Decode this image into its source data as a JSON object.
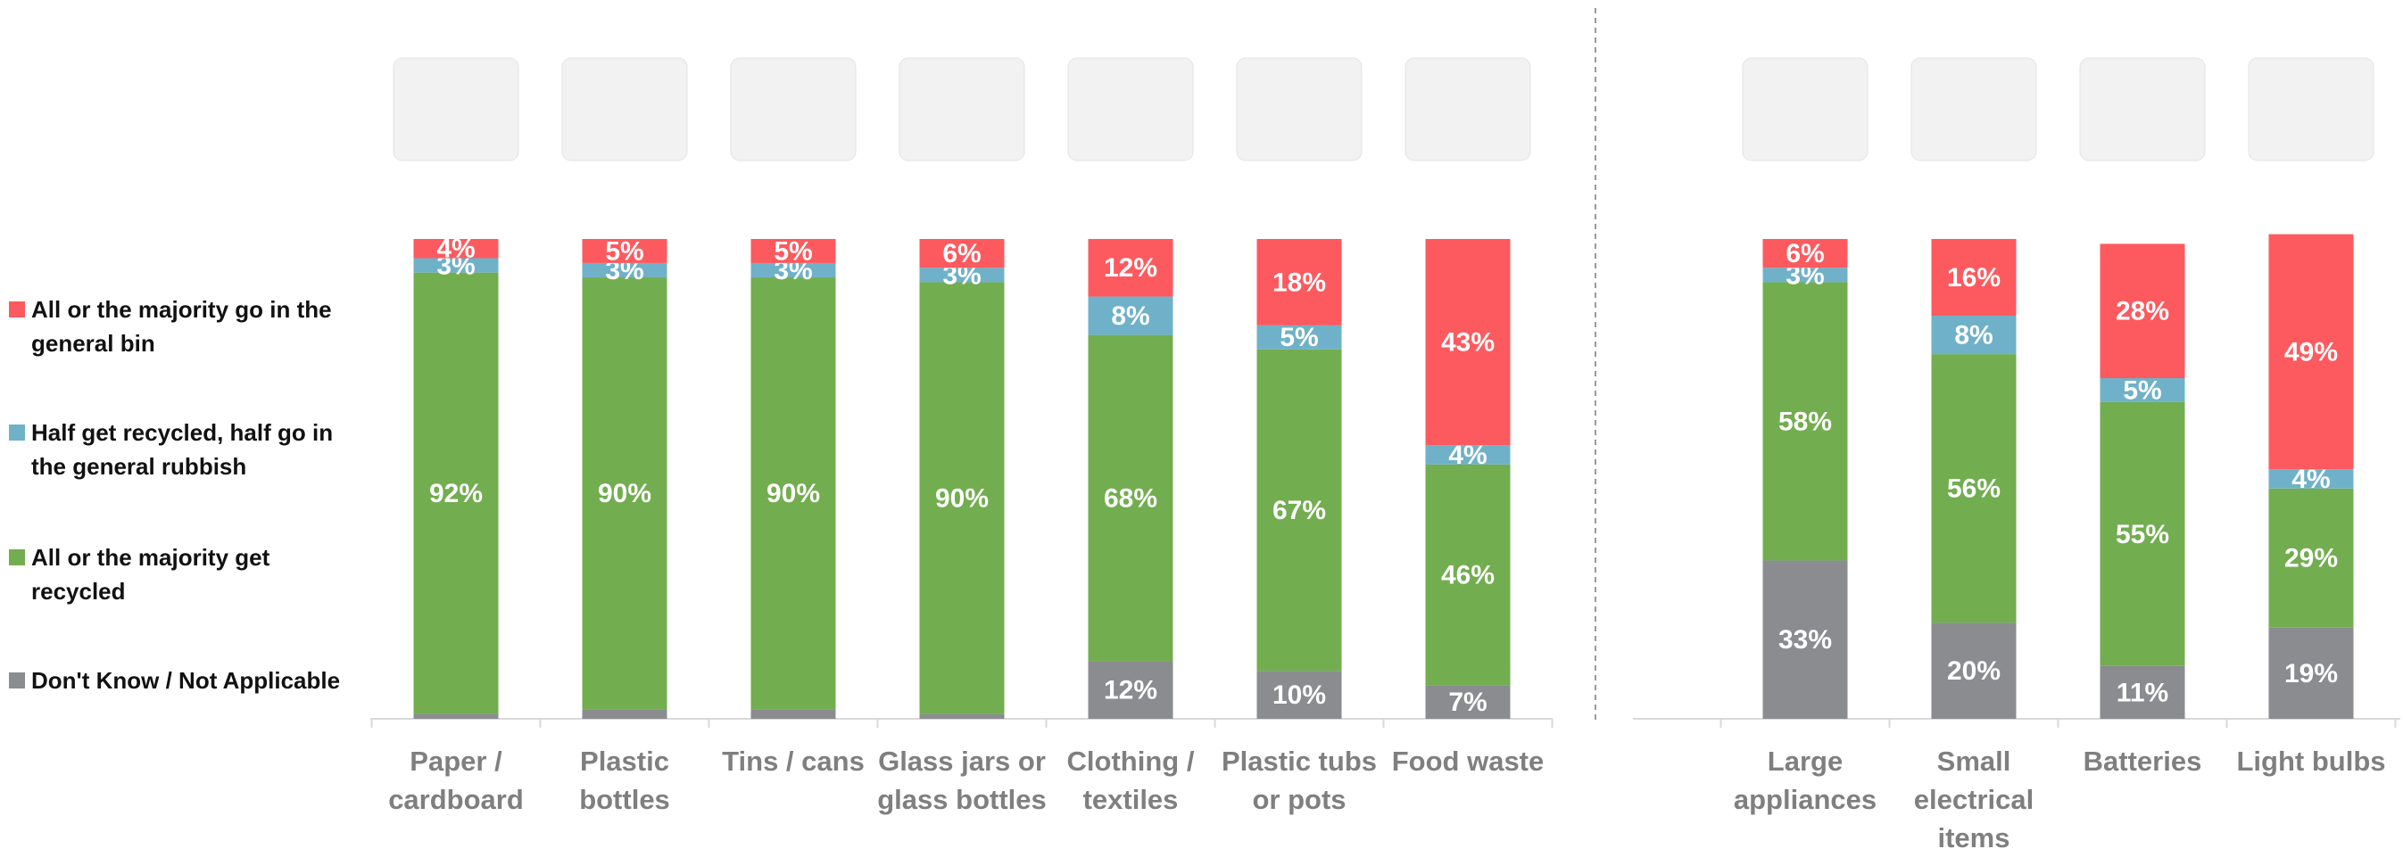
{
  "chart_data": {
    "type": "stacked_bar",
    "categories": [
      "Paper /\ncardboard",
      "Plastic\nbottles",
      "Tins / cans",
      "Glass jars or\nglass bottles",
      "Clothing /\ntextiles",
      "Plastic tubs\nor pots",
      "Food waste",
      "Large\nappliances",
      "Small\nelectrical\nitems",
      "Batteries",
      "Light bulbs"
    ],
    "series": [
      {
        "name": "All or the majority go in the\ngeneral bin",
        "color": "#fd5a5f",
        "values": [
          4,
          5,
          5,
          6,
          12,
          18,
          43,
          6,
          16,
          28,
          49
        ],
        "value_labels": [
          "4%",
          "5%",
          "5%",
          "6%",
          "12%",
          "18%",
          "43%",
          "6%",
          "16%",
          "28%",
          "49%"
        ]
      },
      {
        "name": "Half get recycled, half go in\nthe general rubbish",
        "color": "#6fb1c8",
        "values": [
          3,
          3,
          3,
          3,
          8,
          5,
          4,
          3,
          8,
          5,
          4
        ],
        "value_labels": [
          "3%",
          "3%",
          "3%",
          "3%",
          "8%",
          "5%",
          "4%",
          "3%",
          "8%",
          "5%",
          "4%"
        ]
      },
      {
        "name": "All or the majority get\nrecycled",
        "color": "#72ad4f",
        "values": [
          92,
          90,
          90,
          90,
          68,
          67,
          46,
          58,
          56,
          55,
          29
        ],
        "value_labels": [
          "92%",
          "90%",
          "90%",
          "90%",
          "68%",
          "67%",
          "46%",
          "58%",
          "56%",
          "55%",
          "29%"
        ]
      },
      {
        "name": "Don't Know / Not Applicable",
        "color": "#8a8c8f",
        "values": [
          1,
          2,
          2,
          1,
          12,
          10,
          7,
          33,
          20,
          11,
          19
        ],
        "value_labels": [
          null,
          null,
          null,
          null,
          "12%",
          "10%",
          "7%",
          "33%",
          "20%",
          "11%",
          "19%"
        ]
      }
    ],
    "ylim": [
      0,
      100
    ],
    "legend": "left"
  }
}
